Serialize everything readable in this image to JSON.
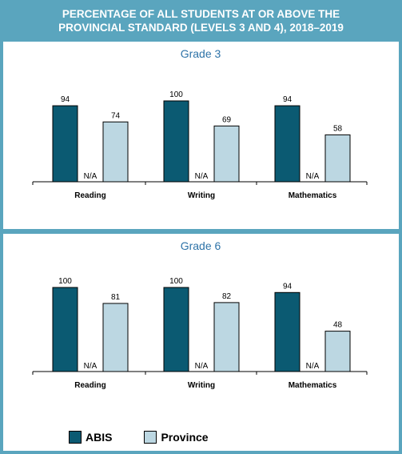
{
  "header": {
    "line1": "PERCENTAGE OF ALL STUDENTS AT OR ABOVE THE",
    "line2": "PROVINCIAL STANDARD (LEVELS 3 AND 4), 2018–2019"
  },
  "colors": {
    "abis": "#0b5a72",
    "province": "#bcd7e2",
    "title": "#2e73a8",
    "frame": "#5aa5be"
  },
  "chart_data": [
    {
      "type": "bar",
      "title": "Grade 3",
      "categories": [
        "Reading",
        "Writing",
        "Mathematics"
      ],
      "series": [
        {
          "name": "ABIS",
          "values": [
            94,
            100,
            94
          ]
        },
        {
          "name": "Province",
          "values": [
            74,
            69,
            58
          ]
        }
      ],
      "na_label": "N/A",
      "ylim": [
        0,
        100
      ],
      "grid": false,
      "legend": "bottom"
    },
    {
      "type": "bar",
      "title": "Grade 6",
      "categories": [
        "Reading",
        "Writing",
        "Mathematics"
      ],
      "series": [
        {
          "name": "ABIS",
          "values": [
            100,
            100,
            94
          ]
        },
        {
          "name": "Province",
          "values": [
            81,
            82,
            48
          ]
        }
      ],
      "na_label": "N/A",
      "ylim": [
        0,
        100
      ],
      "grid": false,
      "legend": "bottom"
    }
  ],
  "legend": {
    "abis": "ABIS",
    "province": "Province"
  }
}
